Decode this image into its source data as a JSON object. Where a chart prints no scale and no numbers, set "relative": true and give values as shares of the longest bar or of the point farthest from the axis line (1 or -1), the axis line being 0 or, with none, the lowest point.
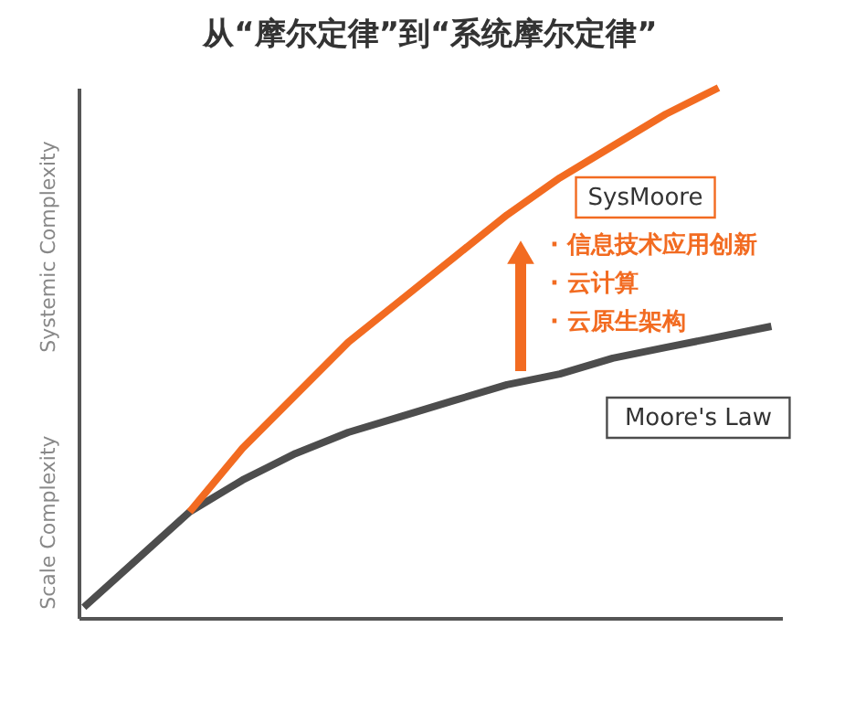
{
  "chart_data": {
    "type": "line",
    "title": "从“摩尔定律”到“系统摩尔定律”",
    "relative": true,
    "categories": [
      null,
      null,
      null,
      null,
      null,
      null,
      null,
      null,
      null,
      null,
      null,
      null,
      null,
      null
    ],
    "series": [
      {
        "name": "Moore's Law",
        "color": "#4d4d4d",
        "values": [
          0.02,
          0.11,
          0.2,
          0.26,
          0.31,
          0.35,
          0.38,
          0.41,
          0.44,
          0.46,
          0.49,
          0.51,
          0.53,
          0.55
        ]
      },
      {
        "name": "SysMoore",
        "color": "#f26b21",
        "values": [
          null,
          null,
          0.2,
          0.32,
          0.42,
          0.52,
          0.6,
          0.68,
          0.76,
          0.83,
          0.89,
          0.95,
          1.0,
          null
        ]
      }
    ],
    "annotations": [
      "Systemic Complexity",
      "Scale Complexity",
      "· 信息技术应用创新",
      "· 云计算",
      "· 云原生架构"
    ],
    "marker": "none",
    "line_style": "solid"
  }
}
